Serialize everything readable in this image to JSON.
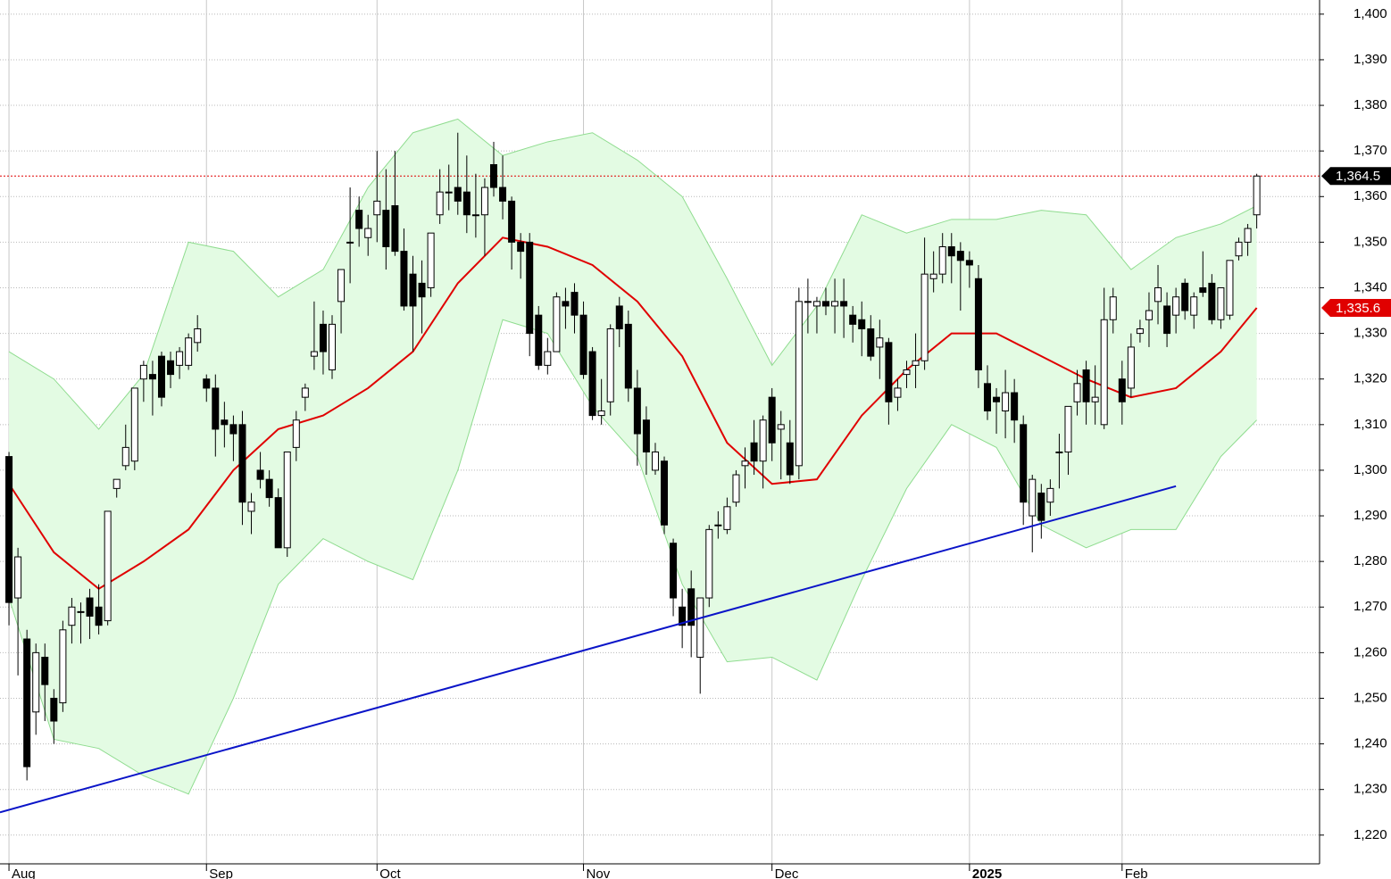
{
  "chart_data": {
    "type": "candlestick",
    "categories": [
      "Aug",
      null,
      null,
      null,
      null,
      null,
      null,
      null,
      null,
      null,
      null,
      null,
      null,
      null,
      null,
      null,
      null,
      null,
      null,
      null,
      null,
      null,
      "Sep",
      null,
      null,
      null,
      null,
      null,
      null,
      null,
      null,
      null,
      null,
      null,
      null,
      null,
      null,
      null,
      null,
      null,
      null,
      "Oct",
      null,
      null,
      null,
      null,
      null,
      null,
      null,
      null,
      null,
      null,
      null,
      null,
      null,
      null,
      null,
      null,
      null,
      null,
      null,
      null,
      null,
      null,
      "Nov",
      null,
      null,
      null,
      null,
      null,
      null,
      null,
      null,
      null,
      null,
      null,
      null,
      null,
      null,
      null,
      null,
      null,
      null,
      null,
      null,
      "Dec",
      null,
      null,
      null,
      null,
      null,
      null,
      null,
      null,
      null,
      null,
      null,
      null,
      null,
      null,
      null,
      null,
      null,
      null,
      null,
      null,
      null,
      "2025",
      null,
      null,
      null,
      null,
      null,
      null,
      null,
      null,
      null,
      null,
      null,
      null,
      null,
      null,
      null,
      null,
      "Feb",
      null,
      null,
      null,
      null,
      null,
      null,
      null,
      null,
      null,
      null,
      null,
      null,
      null,
      null,
      null
    ],
    "open": [
      1303,
      1272,
      1263,
      1247,
      1259,
      1250,
      1249,
      1266,
      1269,
      1272,
      1270,
      1267,
      1296,
      1301,
      1302,
      1320,
      1321,
      1325,
      1324,
      1323,
      1323,
      1328,
      1320,
      1318,
      1311,
      1310,
      1310,
      1291,
      1300,
      1298,
      1294,
      1283,
      1305,
      1316,
      1325,
      1332,
      1322,
      1337,
      1350,
      1357,
      1351,
      1356,
      1357,
      1358,
      1348,
      1343,
      1341,
      1340,
      1356,
      1361,
      1362,
      1361,
      1356,
      1356,
      1367,
      1362,
      1359,
      1350,
      1350,
      1334,
      1323,
      1326,
      1337,
      1339,
      1334,
      1326,
      1312,
      1315,
      1336,
      1332,
      1318,
      1311,
      1300,
      1302,
      1284,
      1270,
      1274,
      1259,
      1272,
      1288,
      1287,
      1293,
      1301,
      1306,
      1302,
      1316,
      1309,
      1306,
      1301,
      1337,
      1336,
      1337,
      1336,
      1337,
      1334,
      1333,
      1331,
      1327,
      1328,
      1316,
      1321,
      1323,
      1324,
      1342,
      1343,
      1349,
      1348,
      1346,
      1342,
      1319,
      1316,
      1313,
      1317,
      1310,
      1290,
      1295,
      1293,
      1304,
      1304,
      1315,
      1322,
      1315,
      1310,
      1333,
      1320,
      1318,
      1330,
      1333,
      1337,
      1336,
      1334,
      1341,
      1334,
      1340,
      1341,
      1333,
      1334,
      1347,
      1350,
      1356
    ],
    "high": [
      1304,
      1283,
      1265,
      1262,
      1262,
      1252,
      1267,
      1272,
      1271,
      1274,
      1275,
      1291,
      1298,
      1310,
      1318,
      1324,
      1324,
      1326,
      1326,
      1327,
      1330,
      1334,
      1321,
      1321,
      1315,
      1312,
      1313,
      1295,
      1304,
      1300,
      1296,
      1304,
      1313,
      1319,
      1337,
      1335,
      1334,
      1344,
      1362,
      1360,
      1356,
      1370,
      1366,
      1370,
      1353,
      1347,
      1346,
      1352,
      1366,
      1367,
      1374,
      1369,
      1365,
      1364,
      1372,
      1369,
      1360,
      1352,
      1352,
      1336,
      1329,
      1339,
      1340,
      1341,
      1337,
      1327,
      1320,
      1332,
      1338,
      1335,
      1322,
      1314,
      1306,
      1303,
      1285,
      1274,
      1278,
      1272,
      1288,
      1291,
      1294,
      1300,
      1305,
      1311,
      1312,
      1318,
      1313,
      1311,
      1340,
      1342,
      1338,
      1340,
      1342,
      1342,
      1336,
      1337,
      1334,
      1333,
      1329,
      1320,
      1324,
      1330,
      1351,
      1348,
      1352,
      1352,
      1350,
      1348,
      1345,
      1323,
      1318,
      1322,
      1320,
      1312,
      1299,
      1297,
      1298,
      1308,
      1314,
      1322,
      1324,
      1323,
      1340,
      1340,
      1324,
      1330,
      1333,
      1339,
      1345,
      1339,
      1340,
      1342,
      1339,
      1348,
      1343,
      1340,
      1346,
      1351,
      1354,
      1365
    ],
    "low": [
      1266,
      1255,
      1232,
      1242,
      1245,
      1240,
      1247,
      1262,
      1262,
      1263,
      1264,
      1266,
      1294,
      1300,
      1300,
      1315,
      1312,
      1314,
      1318,
      1320,
      1322,
      1326,
      1315,
      1303,
      1305,
      1302,
      1288,
      1286,
      1296,
      1292,
      1283,
      1281,
      1302,
      1313,
      1322,
      1321,
      1320,
      1330,
      1341,
      1349,
      1347,
      1350,
      1344,
      1347,
      1335,
      1326,
      1330,
      1338,
      1354,
      1357,
      1356,
      1352,
      1351,
      1347,
      1360,
      1355,
      1344,
      1342,
      1325,
      1322,
      1321,
      1326,
      1331,
      1330,
      1320,
      1311,
      1310,
      1312,
      1327,
      1315,
      1301,
      1299,
      1299,
      1286,
      1268,
      1261,
      1259,
      1251,
      1270,
      1285,
      1286,
      1292,
      1296,
      1299,
      1296,
      1302,
      1298,
      1297,
      1298,
      1330,
      1330,
      1334,
      1330,
      1329,
      1328,
      1325,
      1324,
      1320,
      1310,
      1313,
      1318,
      1318,
      1322,
      1339,
      1341,
      1341,
      1335,
      1340,
      1318,
      1311,
      1308,
      1307,
      1306,
      1288,
      1282,
      1285,
      1290,
      1296,
      1299,
      1312,
      1310,
      1310,
      1309,
      1330,
      1310,
      1316,
      1328,
      1327,
      1332,
      1327,
      1330,
      1333,
      1331,
      1338,
      1332,
      1331,
      1333,
      1346,
      1347,
      1353
    ],
    "close": [
      1271,
      1281,
      1235,
      1260,
      1253,
      1245,
      1265,
      1270,
      1269,
      1268,
      1266,
      1291,
      1298,
      1305,
      1318,
      1323,
      1320,
      1316,
      1321,
      1326,
      1329,
      1331,
      1318,
      1309,
      1310,
      1308,
      1293,
      1293,
      1298,
      1294,
      1283,
      1304,
      1311,
      1318,
      1326,
      1326,
      1332,
      1344,
      1350,
      1353,
      1353,
      1359,
      1349,
      1348,
      1336,
      1336,
      1338,
      1352,
      1361,
      1361,
      1359,
      1356,
      1356,
      1362,
      1362,
      1359,
      1350,
      1348,
      1330,
      1323,
      1326,
      1338,
      1336,
      1334,
      1321,
      1312,
      1313,
      1331,
      1331,
      1318,
      1308,
      1304,
      1304,
      1288,
      1272,
      1266,
      1266,
      1272,
      1287,
      1288,
      1292,
      1299,
      1302,
      1302,
      1311,
      1306,
      1310,
      1299,
      1337,
      1337,
      1337,
      1336,
      1337,
      1336,
      1332,
      1331,
      1325,
      1329,
      1315,
      1318,
      1322,
      1324,
      1343,
      1343,
      1349,
      1347,
      1346,
      1345,
      1322,
      1313,
      1315,
      1317,
      1311,
      1293,
      1298,
      1289,
      1296,
      1304,
      1314,
      1319,
      1315,
      1316,
      1333,
      1338,
      1315,
      1327,
      1331,
      1335,
      1340,
      1330,
      1338,
      1335,
      1338,
      1339,
      1333,
      1340,
      1346,
      1350,
      1353,
      1364.5
    ],
    "moving_average": {
      "color": "#e00000",
      "x": [
        0,
        5,
        10,
        15,
        20,
        25,
        30,
        35,
        40,
        45,
        50,
        55,
        60,
        65,
        70,
        75,
        80,
        85,
        90,
        95,
        100,
        105,
        110,
        115,
        120,
        125,
        130,
        135,
        139
      ],
      "values": [
        1297,
        1282,
        1274,
        1280,
        1287,
        1300,
        1309,
        1312,
        1318,
        1326,
        1341,
        1351,
        1349,
        1345,
        1337,
        1325,
        1306,
        1297,
        1298,
        1312,
        1322,
        1330,
        1330,
        1325,
        1320,
        1316,
        1318,
        1326,
        1335.6
      ]
    },
    "upper_band": {
      "color": "#8fdc8f",
      "x": [
        0,
        5,
        10,
        15,
        20,
        25,
        30,
        35,
        40,
        45,
        50,
        55,
        60,
        65,
        70,
        75,
        80,
        85,
        90,
        95,
        100,
        105,
        110,
        115,
        120,
        125,
        130,
        135,
        139
      ],
      "values": [
        1326,
        1320,
        1309,
        1321,
        1350,
        1348,
        1338,
        1344,
        1362,
        1374,
        1377,
        1369,
        1372,
        1374,
        1368,
        1360,
        1342,
        1323,
        1336,
        1356,
        1352,
        1355,
        1355,
        1357,
        1356,
        1344,
        1351,
        1354,
        1358
      ]
    },
    "lower_band": {
      "color": "#8fdc8f",
      "x": [
        0,
        5,
        10,
        15,
        20,
        25,
        30,
        35,
        40,
        45,
        50,
        55,
        60,
        65,
        70,
        75,
        80,
        85,
        90,
        95,
        100,
        105,
        110,
        115,
        120,
        125,
        130,
        135,
        139
      ],
      "values": [
        1272,
        1241,
        1239,
        1233,
        1229,
        1250,
        1275,
        1285,
        1280,
        1276,
        1300,
        1333,
        1330,
        1314,
        1303,
        1275,
        1258,
        1259,
        1254,
        1276,
        1296,
        1310,
        1305,
        1288,
        1283,
        1287,
        1287,
        1303,
        1311
      ]
    },
    "band_fill": "#e3fbe3",
    "trendline": {
      "color": "#0a14c8",
      "x": [
        -1,
        130
      ],
      "values": [
        1225,
        1296.5
      ]
    },
    "tags": {
      "close": "1,364.5",
      "moving_average": "1,335.6"
    },
    "xlim": [
      -1,
      146
    ],
    "ylim": [
      1213.7,
      1403.1
    ],
    "yticks": [
      {
        "value": 1220,
        "label": "1,220"
      },
      {
        "value": 1230,
        "label": "1,230"
      },
      {
        "value": 1240,
        "label": "1,240"
      },
      {
        "value": 1250,
        "label": "1,250"
      },
      {
        "value": 1260,
        "label": "1,260"
      },
      {
        "value": 1270,
        "label": "1,270"
      },
      {
        "value": 1280,
        "label": "1,280"
      },
      {
        "value": 1290,
        "label": "1,290"
      },
      {
        "value": 1300,
        "label": "1,300"
      },
      {
        "value": 1310,
        "label": "1,310"
      },
      {
        "value": 1320,
        "label": "1,320"
      },
      {
        "value": 1330,
        "label": "1,330"
      },
      {
        "value": 1340,
        "label": "1,340"
      },
      {
        "value": 1350,
        "label": "1,350"
      },
      {
        "value": 1360,
        "label": "1,360"
      },
      {
        "value": 1370,
        "label": "1,370"
      },
      {
        "value": 1380,
        "label": "1,380"
      },
      {
        "value": 1390,
        "label": "1,390"
      },
      {
        "value": 1400,
        "label": "1,400"
      }
    ],
    "grid": true
  }
}
